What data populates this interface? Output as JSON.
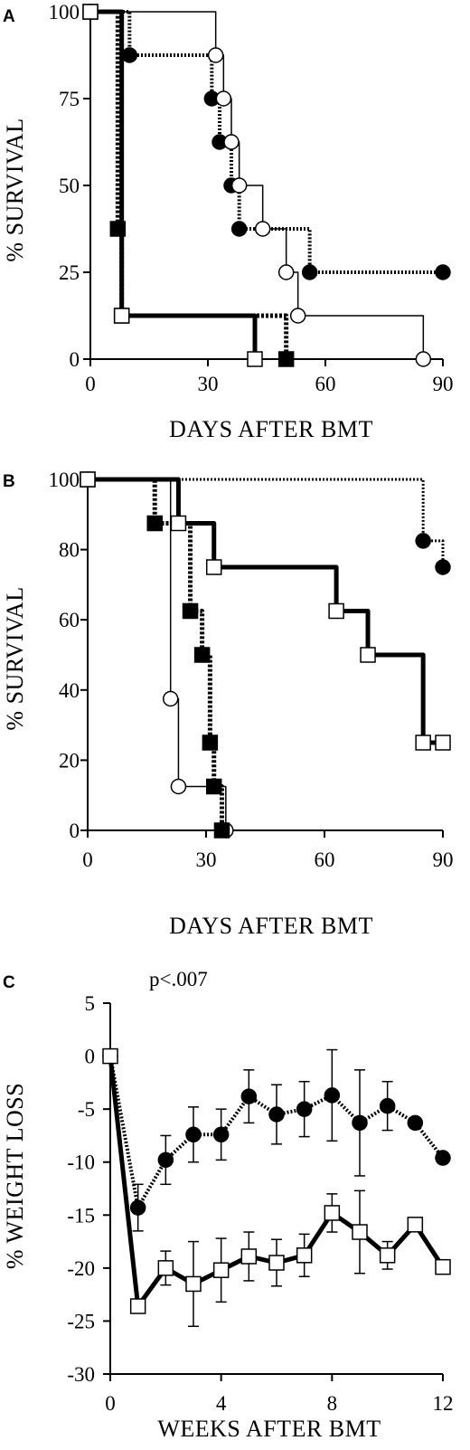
{
  "chart_data": [
    {
      "panel": "A",
      "type": "line",
      "step": true,
      "xlabel": "DAYS AFTER BMT",
      "ylabel": "% SURVIVAL",
      "xlim": [
        0,
        90
      ],
      "ylim": [
        0,
        100
      ],
      "xticks": [
        0,
        30,
        60,
        90
      ],
      "yticks": [
        0,
        25,
        50,
        75,
        100
      ],
      "series": [
        {
          "marker": "filled-circle",
          "line": "dotted",
          "x": [
            0,
            10,
            31,
            33,
            36,
            38,
            56,
            90
          ],
          "y": [
            100,
            87.5,
            75,
            62.5,
            50,
            37.5,
            25,
            25
          ]
        },
        {
          "marker": "open-circle",
          "line": "thin",
          "x": [
            0,
            32,
            34,
            36,
            38,
            44,
            50,
            53,
            85
          ],
          "y": [
            100,
            87.5,
            75,
            62.5,
            50,
            37.5,
            25,
            12.5,
            0
          ]
        },
        {
          "marker": "filled-square",
          "line": "dotted-thick",
          "x": [
            0,
            7,
            8,
            50
          ],
          "y": [
            100,
            37.5,
            12.5,
            0
          ]
        },
        {
          "marker": "open-square",
          "line": "thick",
          "x": [
            0,
            8,
            42
          ],
          "y": [
            100,
            12.5,
            0
          ]
        }
      ]
    },
    {
      "panel": "B",
      "type": "line",
      "step": true,
      "xlabel": "DAYS AFTER BMT",
      "ylabel": "% SURVIVAL",
      "xlim": [
        0,
        90
      ],
      "ylim": [
        0,
        100
      ],
      "xticks": [
        0,
        30,
        60,
        90
      ],
      "yticks": [
        0,
        20,
        40,
        60,
        80,
        100
      ],
      "series": [
        {
          "marker": "filled-circle",
          "line": "dotted-thin",
          "x": [
            0,
            85,
            90
          ],
          "y": [
            100,
            82.5,
            75
          ]
        },
        {
          "marker": "open-circle",
          "line": "thin",
          "x": [
            0,
            21,
            23,
            35
          ],
          "y": [
            100,
            37.5,
            12.5,
            0
          ]
        },
        {
          "marker": "filled-square",
          "line": "dotted-thick",
          "x": [
            0,
            17,
            26,
            29,
            31,
            32,
            34
          ],
          "y": [
            100,
            87.5,
            62.5,
            50,
            25,
            12.5,
            0
          ]
        },
        {
          "marker": "open-square",
          "line": "thick",
          "x": [
            0,
            23,
            32,
            63,
            71,
            85,
            90
          ],
          "y": [
            100,
            87.5,
            75,
            62.5,
            50,
            25,
            25
          ]
        }
      ]
    },
    {
      "panel": "C",
      "type": "line",
      "step": false,
      "xlabel": "WEEKS AFTER BMT",
      "ylabel": "% WEIGHT LOSS",
      "annotation": "p<.007",
      "xlim": [
        0,
        12
      ],
      "ylim": [
        -30,
        5
      ],
      "xticks": [
        0,
        4,
        8,
        12
      ],
      "yticks": [
        5,
        0,
        -5,
        -10,
        -15,
        -20,
        -25,
        -30
      ],
      "series": [
        {
          "marker": "filled-circle",
          "line": "dotted",
          "x": [
            0,
            1,
            2,
            3,
            4,
            5,
            6,
            7,
            8,
            9,
            10,
            11,
            12
          ],
          "y": [
            0,
            -14.3,
            -9.8,
            -7.4,
            -7.4,
            -3.8,
            -5.5,
            -5.0,
            -3.7,
            -6.3,
            -4.7,
            -6.3,
            -9.6
          ],
          "err": [
            0,
            2.2,
            2.3,
            2.6,
            2.4,
            2.5,
            2.8,
            2.6,
            4.3,
            5.0,
            2.3,
            0,
            0
          ]
        },
        {
          "marker": "open-square",
          "line": "thick",
          "x": [
            0,
            1,
            2,
            3,
            4,
            5,
            6,
            7,
            8,
            9,
            10,
            11,
            12
          ],
          "y": [
            0,
            -23.6,
            -20.0,
            -21.5,
            -20.2,
            -18.9,
            -19.5,
            -18.8,
            -14.8,
            -16.6,
            -18.8,
            -15.9,
            -19.9
          ],
          "err": [
            0,
            0,
            1.6,
            4.0,
            3.0,
            2.3,
            2.2,
            2.0,
            1.8,
            3.9,
            1.3,
            0,
            0
          ]
        }
      ]
    }
  ]
}
